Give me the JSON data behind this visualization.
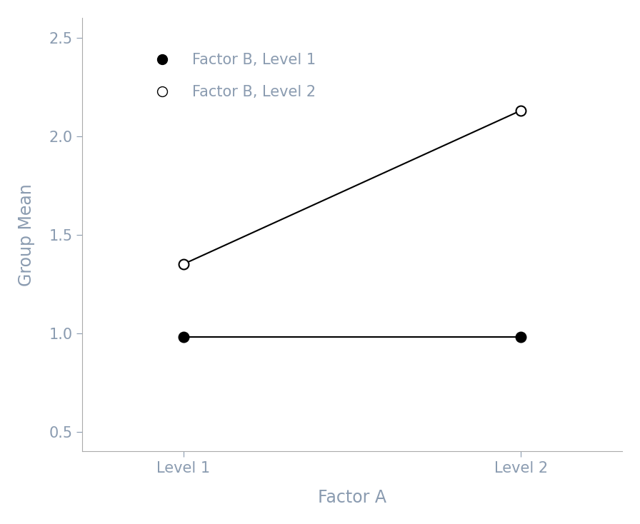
{
  "title": "",
  "xlabel": "Factor A",
  "ylabel": "Group Mean",
  "x_ticks": [
    1,
    2
  ],
  "x_tick_labels": [
    "Level 1",
    "Level 2"
  ],
  "ylim": [
    0.4,
    2.6
  ],
  "y_ticks": [
    0.5,
    1.0,
    1.5,
    2.0,
    2.5
  ],
  "xlim": [
    0.7,
    2.3
  ],
  "line1": {
    "label": "Factor B, Level 1",
    "x": [
      1,
      2
    ],
    "y": [
      0.98,
      0.98
    ],
    "color": "black",
    "marker": "o",
    "markerfacecolor": "black",
    "markeredgecolor": "black",
    "markersize": 10,
    "linewidth": 1.5
  },
  "line2": {
    "label": "Factor B, Level 2",
    "x": [
      1,
      2
    ],
    "y": [
      1.35,
      2.13
    ],
    "color": "black",
    "marker": "o",
    "markerfacecolor": "white",
    "markeredgecolor": "black",
    "markersize": 10,
    "linewidth": 1.5
  },
  "legend_text_color": "#8a9bb0",
  "axis_label_color": "#8a9bb0",
  "tick_label_color": "#8a9bb0",
  "background_color": "#ffffff",
  "plot_bg_color": "#ffffff",
  "spine_color": "#aaaaaa",
  "label_fontsize": 17,
  "tick_fontsize": 15,
  "legend_fontsize": 15
}
